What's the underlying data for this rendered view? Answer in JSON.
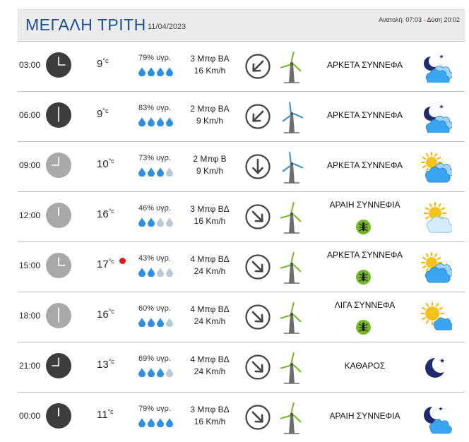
{
  "header": {
    "title": "ΜΕΓΑΛΗ ΤΡΙΤΗ",
    "date": "11/04/2023",
    "sunrise_label": "Ανατολή: 07:03",
    "separator": " - ",
    "sunset_label": "Δύση 20:02"
  },
  "colors": {
    "title": "#1d4f91",
    "drop_full": "#2f8fe0",
    "drop_empty": "#b9c9d6",
    "turbine_green": "#76b82a",
    "turbine_blue": "#3a8fc7",
    "alert_dot": "#e8151b"
  },
  "rows": [
    {
      "time": "03:00",
      "clock": "dark",
      "hour": 3,
      "temp": "9",
      "unit": "°c",
      "humidity": "79% υγρ.",
      "drops_filled": 4,
      "beaufort": "3 Μπφ ΒΑ",
      "speed": "16 Km/h",
      "wind_dir": "NE",
      "turbine": "green",
      "condition": "ΑΡΚΕΤΑ ΣΥΝΝΕΦΑ",
      "mosquito": false,
      "icon": "moon-clouds-icon",
      "alert": false
    },
    {
      "time": "06:00",
      "clock": "dark",
      "hour": 6,
      "temp": "9",
      "unit": "°c",
      "humidity": "83% υγρ.",
      "drops_filled": 4,
      "beaufort": "2 Μπφ ΒΑ",
      "speed": "9 Km/h",
      "wind_dir": "NE",
      "turbine": "blue",
      "condition": "ΑΡΚΕΤΑ ΣΥΝΝΕΦΑ",
      "mosquito": false,
      "icon": "moon-clouds-icon",
      "alert": false
    },
    {
      "time": "09:00",
      "clock": "light",
      "hour": 9,
      "temp": "10",
      "unit": "°c",
      "humidity": "73% υγρ.",
      "drops_filled": 3,
      "beaufort": "2 Μπφ Β",
      "speed": "9 Km/h",
      "wind_dir": "N",
      "turbine": "blue",
      "condition": "ΑΡΚΕΤΑ ΣΥΝΝΕΦΑ",
      "mosquito": false,
      "icon": "sun-clouds-icon",
      "alert": false
    },
    {
      "time": "12:00",
      "clock": "light",
      "hour": 12,
      "temp": "16",
      "unit": "°c",
      "humidity": "46% υγρ.",
      "drops_filled": 2,
      "beaufort": "3 Μπφ ΒΔ",
      "speed": "16 Km/h",
      "wind_dir": "NW",
      "turbine": "green",
      "condition": "ΑΡΑΙΗ ΣΥΝΝΕΦΙΑ",
      "mosquito": true,
      "icon": "sun-behind-cloud-icon",
      "alert": false
    },
    {
      "time": "15:00",
      "clock": "light",
      "hour": 15,
      "temp": "17",
      "unit": "°c",
      "humidity": "43% υγρ.",
      "drops_filled": 2,
      "beaufort": "4 Μπφ ΒΔ",
      "speed": "24 Km/h",
      "wind_dir": "NW",
      "turbine": "green",
      "condition": "ΑΡΚΕΤΑ ΣΥΝΝΕΦΑ",
      "mosquito": true,
      "icon": "sun-clouds-icon",
      "alert": true
    },
    {
      "time": "18:00",
      "clock": "light",
      "hour": 18,
      "temp": "16",
      "unit": "°c",
      "humidity": "60% υγρ.",
      "drops_filled": 3,
      "beaufort": "4 Μπφ ΒΔ",
      "speed": "24 Km/h",
      "wind_dir": "NW",
      "turbine": "green",
      "condition": "ΛΙΓΑ ΣΥΝΝΕΦΑ",
      "mosquito": true,
      "icon": "sun-small-cloud-icon",
      "alert": false
    },
    {
      "time": "21:00",
      "clock": "dark",
      "hour": 21,
      "temp": "13",
      "unit": "°c",
      "humidity": "69% υγρ.",
      "drops_filled": 3,
      "beaufort": "4 Μπφ ΒΔ",
      "speed": "24 Km/h",
      "wind_dir": "NW",
      "turbine": "green",
      "condition": "ΚΑΘΑΡΟΣ",
      "mosquito": false,
      "icon": "moon-clear-icon",
      "alert": false
    },
    {
      "time": "00:00",
      "clock": "dark",
      "hour": 0,
      "temp": "11",
      "unit": "°c",
      "humidity": "79% υγρ.",
      "drops_filled": 4,
      "beaufort": "3 Μπφ ΒΔ",
      "speed": "16 Km/h",
      "wind_dir": "NW",
      "turbine": "green",
      "condition": "ΑΡΑΙΗ ΣΥΝΝΕΦΙΑ",
      "mosquito": false,
      "icon": "moon-cloud-icon",
      "alert": false
    }
  ]
}
